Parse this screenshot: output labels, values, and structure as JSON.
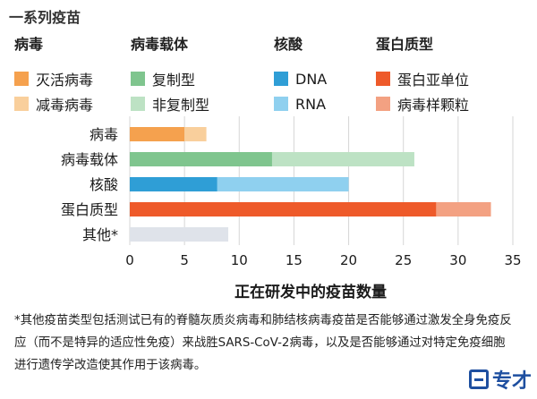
{
  "page": {
    "title": "一系列疫苗"
  },
  "legend": [
    {
      "title": "病毒",
      "items": [
        {
          "label": "灭活病毒",
          "color": "#f5a14e"
        },
        {
          "label": "减毒病毒",
          "color": "#f9cf9c"
        }
      ]
    },
    {
      "title": "病毒载体",
      "items": [
        {
          "label": "复制型",
          "color": "#7fc58e"
        },
        {
          "label": "非复制型",
          "color": "#bde2c4"
        }
      ]
    },
    {
      "title": "核酸",
      "items": [
        {
          "label": "DNA",
          "color": "#2f9ed6"
        },
        {
          "label": "RNA",
          "color": "#8fd0ef"
        }
      ]
    },
    {
      "title": "蛋白质型",
      "items": [
        {
          "label": "蛋白亚单位",
          "color": "#ee5a2a"
        },
        {
          "label": "病毒样颗粒",
          "color": "#f3a182"
        }
      ]
    }
  ],
  "chart_data": {
    "type": "bar",
    "orientation": "horizontal",
    "stacked": true,
    "categories": [
      "病毒",
      "病毒载体",
      "核酸",
      "蛋白质型",
      "其他*"
    ],
    "bars": [
      {
        "category": "病毒",
        "segments": [
          {
            "value": 5,
            "color": "#f5a14e"
          },
          {
            "value": 2,
            "color": "#f9cf9c"
          }
        ]
      },
      {
        "category": "病毒载体",
        "segments": [
          {
            "value": 13,
            "color": "#7fc58e"
          },
          {
            "value": 13,
            "color": "#bde2c4"
          }
        ]
      },
      {
        "category": "核酸",
        "segments": [
          {
            "value": 8,
            "color": "#2f9ed6"
          },
          {
            "value": 12,
            "color": "#8fd0ef"
          }
        ]
      },
      {
        "category": "蛋白质型",
        "segments": [
          {
            "value": 28,
            "color": "#ee5a2a"
          },
          {
            "value": 5,
            "color": "#f3a182"
          }
        ]
      },
      {
        "category": "其他*",
        "segments": [
          {
            "value": 9,
            "color": "#dfe3ea"
          }
        ]
      }
    ],
    "xlim": [
      0,
      35
    ],
    "xticks": [
      0,
      5,
      10,
      15,
      20,
      25,
      30,
      35
    ],
    "xlabel": "正在研发中的疫苗数量",
    "grid": "vertical"
  },
  "footnote": "*其他疫苗类型包括测试已有的脊髓灰质炎病毒和肺结核病毒疫苗是否能够通过激发全身免疫反应（而不是特异的适应性免疫）来战胜SARS-CoV-2病毒，以及是否能够通过对特定免疫细胞进行遗传学改造使其作用于该病毒。",
  "logo": {
    "text": "专才"
  }
}
